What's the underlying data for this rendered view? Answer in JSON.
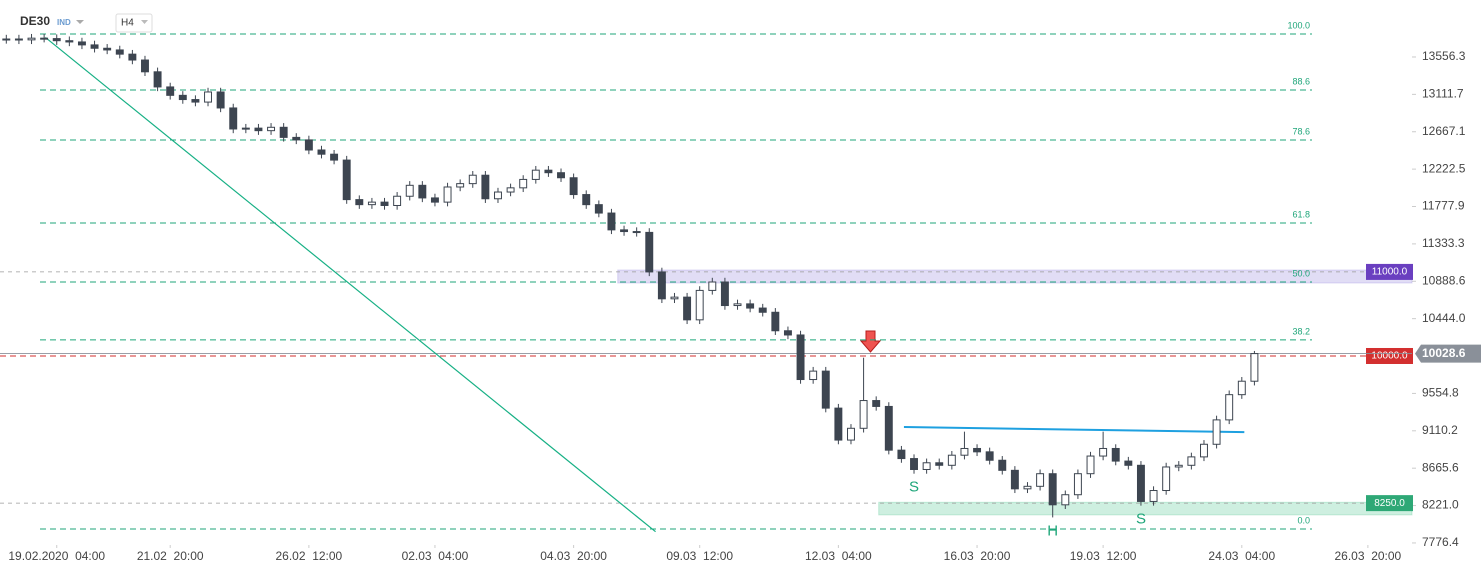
{
  "chart_data": {
    "type": "candlestick",
    "symbol": "DE30",
    "market": "IND",
    "timeframe": "H4",
    "open": [
      13765,
      13770,
      13760,
      13780,
      13775,
      13750,
      13735,
      13700,
      13660,
      13640,
      13590,
      13520,
      13380,
      13200,
      13100,
      13050,
      13020,
      13140,
      12950,
      12700,
      12710,
      12680,
      12720,
      12600,
      12570,
      12450,
      12400,
      12330,
      11860,
      11800,
      11830,
      11790,
      11900,
      12030,
      11880,
      11830,
      12010,
      12050,
      12150,
      11870,
      11950,
      12000,
      12100,
      12210,
      12180,
      12120,
      11920,
      11800,
      11700,
      11500,
      11480,
      11470,
      11000,
      10680,
      10700,
      10430,
      10780,
      10880,
      10600,
      10620,
      10570,
      10520,
      10300,
      10250,
      9720,
      9820,
      9380,
      9000,
      9140,
      9470,
      9400,
      8880,
      8780,
      8650,
      8730,
      8700,
      8820,
      8900,
      8860,
      8760,
      8640,
      8420,
      8450,
      8600,
      8230,
      8350,
      8600,
      8810,
      8900,
      8750,
      8700,
      8270,
      8400,
      8680,
      8700,
      8800,
      8950,
      9240,
      9540,
      9700
    ],
    "high": [
      13820,
      13820,
      13830,
      13830,
      13825,
      13800,
      13785,
      13750,
      13710,
      13690,
      13640,
      13570,
      13430,
      13250,
      13150,
      13100,
      13190,
      13190,
      13000,
      12760,
      12760,
      12770,
      12770,
      12650,
      12620,
      12500,
      12450,
      12380,
      11910,
      11880,
      11880,
      11950,
      12080,
      12080,
      11930,
      12060,
      12100,
      12200,
      12200,
      12000,
      12050,
      12150,
      12260,
      12260,
      12230,
      12170,
      11970,
      11850,
      11750,
      11550,
      11530,
      11520,
      11050,
      10750,
      10750,
      10830,
      10930,
      10930,
      10670,
      10670,
      10620,
      10570,
      10350,
      10300,
      9870,
      9870,
      9430,
      9190,
      9980,
      9520,
      9450,
      8930,
      8830,
      8780,
      8780,
      8870,
      9100,
      8950,
      8910,
      8810,
      8690,
      8500,
      8650,
      8650,
      8400,
      8650,
      8860,
      9100,
      8950,
      8800,
      8750,
      8450,
      8730,
      8750,
      8850,
      9000,
      9290,
      9590,
      9750,
      10060
    ],
    "low": [
      13715,
      13710,
      13710,
      13730,
      13700,
      13685,
      13650,
      13610,
      13590,
      13540,
      13470,
      13330,
      13150,
      13050,
      13000,
      12970,
      12970,
      12900,
      12650,
      12650,
      12630,
      12630,
      12550,
      12520,
      12400,
      12350,
      12280,
      11810,
      11750,
      11750,
      11740,
      11740,
      11850,
      11830,
      11780,
      11780,
      11960,
      12000,
      11820,
      11820,
      11900,
      11950,
      12050,
      12130,
      12070,
      11870,
      11750,
      11650,
      11450,
      11430,
      11420,
      10950,
      10630,
      10630,
      10380,
      10380,
      10730,
      10550,
      10550,
      10520,
      10470,
      10250,
      10200,
      9670,
      9670,
      9330,
      8950,
      8950,
      9090,
      9350,
      8830,
      8730,
      8600,
      8600,
      8650,
      8650,
      8770,
      8810,
      8710,
      8590,
      8370,
      8370,
      8400,
      8080,
      8180,
      8300,
      8550,
      8760,
      8700,
      8650,
      8220,
      8220,
      8350,
      8630,
      8650,
      8750,
      8900,
      9190,
      9490,
      9650
    ],
    "close": [
      13770,
      13760,
      13780,
      13775,
      13750,
      13735,
      13700,
      13660,
      13640,
      13590,
      13520,
      13380,
      13200,
      13100,
      13050,
      13020,
      13140,
      12950,
      12700,
      12710,
      12680,
      12720,
      12600,
      12570,
      12450,
      12400,
      12330,
      11860,
      11800,
      11830,
      11790,
      11900,
      12030,
      11880,
      11830,
      12010,
      12050,
      12150,
      11870,
      11950,
      12000,
      12100,
      12210,
      12180,
      12120,
      11920,
      11800,
      11700,
      11500,
      11480,
      11470,
      11000,
      10680,
      10700,
      10430,
      10780,
      10880,
      10600,
      10620,
      10570,
      10520,
      10300,
      10250,
      9720,
      9820,
      9380,
      9000,
      9140,
      9470,
      9400,
      8880,
      8780,
      8650,
      8730,
      8700,
      8820,
      8900,
      8860,
      8760,
      8640,
      8420,
      8450,
      8600,
      8230,
      8350,
      8600,
      8810,
      8900,
      8750,
      8700,
      8270,
      8400,
      8680,
      8700,
      8800,
      8950,
      9240,
      9540,
      9700,
      10028.6
    ],
    "up_color": "#ffffff",
    "down_color": "#3d4550",
    "xlim": [
      -0.5,
      111.5
    ],
    "xticks": [
      {
        "value": 4,
        "label": "19.02.2020  04:00"
      },
      {
        "value": 13,
        "label": "21.02  20:00"
      },
      {
        "value": 24,
        "label": "26.02  12:00"
      },
      {
        "value": 34,
        "label": "02.03  04:00"
      },
      {
        "value": 45,
        "label": "04.03  20:00"
      },
      {
        "value": 55,
        "label": "09.03  12:00"
      },
      {
        "value": 66,
        "label": "12.03  04:00"
      },
      {
        "value": 77,
        "label": "16.03  20:00"
      },
      {
        "value": 87,
        "label": "19.03  12:00"
      },
      {
        "value": 98,
        "label": "24.03  04:00"
      },
      {
        "value": 108,
        "label": "26.03  20:00"
      }
    ],
    "ylim": [
      7752,
      14234
    ],
    "yticks": [
      13556.3,
      13111.7,
      12667.1,
      12222.5,
      11777.9,
      11333.3,
      10888.6,
      {
        "value": 10444,
        "label": "10444.0"
      },
      9554.8,
      9110.2,
      8665.6,
      {
        "value": 8221,
        "label": "8221.0"
      },
      7776.4
    ],
    "fib_levels": [
      {
        "value": 13830,
        "label": "100.0"
      },
      {
        "value": 13164,
        "label": "88.6"
      },
      {
        "value": 12569,
        "label": "78.6"
      },
      {
        "value": 11582,
        "label": "61.8"
      },
      {
        "value": 10880,
        "label": "50.0"
      },
      {
        "value": 10191,
        "label": "38.2"
      },
      {
        "value": 7943,
        "label": "0.0"
      }
    ],
    "fib_color": "#1fa67a",
    "zones": [
      {
        "value": 11000,
        "label": "11000.0",
        "top": 11023,
        "bottom": 10868,
        "start": 48.5,
        "color": "#6a3fc0",
        "fill": "rgba(120,100,210,0.22)"
      },
      {
        "value": 8250,
        "label": "8250.0",
        "top": 8260,
        "bottom": 8110,
        "start": 69.2,
        "color": "#2ea876",
        "fill": "rgba(60,190,130,0.25)"
      }
    ],
    "price_lines": [
      {
        "value": 10000,
        "label": "10000.0",
        "color": "#d32f2f"
      }
    ],
    "last_price": {
      "value": 10028.6,
      "color": "#8a9099"
    },
    "trend_lines": [
      {
        "x": [
          3.1,
          51.5
        ],
        "y": [
          13789,
          7910
        ],
        "color": "#17b085"
      },
      {
        "x": [
          71.2,
          98.2
        ],
        "y": [
          9155,
          9095
        ],
        "color": "#1ea0e0"
      }
    ],
    "annotations": [
      {
        "text": "S",
        "x": 72
      },
      {
        "text": "H",
        "x": 83
      },
      {
        "text": "S",
        "x": 90
      }
    ],
    "annotation_color": "#1fa67a"
  }
}
